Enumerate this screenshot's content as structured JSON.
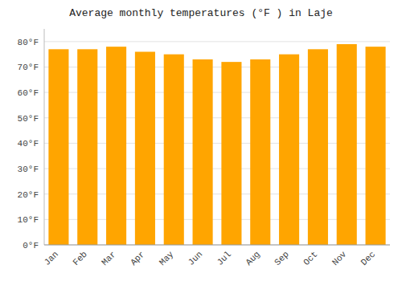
{
  "chart_data": {
    "type": "bar",
    "title": "Average monthly temperatures (°F ) in Laje",
    "categories": [
      "Jan",
      "Feb",
      "Mar",
      "Apr",
      "May",
      "Jun",
      "Jul",
      "Aug",
      "Sep",
      "Oct",
      "Nov",
      "Dec"
    ],
    "values": [
      77,
      77,
      78,
      76,
      75,
      73,
      72,
      73,
      75,
      77,
      79,
      78
    ],
    "color": "#FFA500",
    "ylim": [
      0,
      85
    ],
    "yticks": [
      {
        "value": 0,
        "label": "0°F"
      },
      {
        "value": 10,
        "label": "10°F"
      },
      {
        "value": 20,
        "label": "20°F"
      },
      {
        "value": 30,
        "label": "30°F"
      },
      {
        "value": 40,
        "label": "40°F"
      },
      {
        "value": 50,
        "label": "50°F"
      },
      {
        "value": 60,
        "label": "60°F"
      },
      {
        "value": 70,
        "label": "70°F"
      },
      {
        "value": 80,
        "label": "80°F"
      }
    ],
    "grid": true
  }
}
